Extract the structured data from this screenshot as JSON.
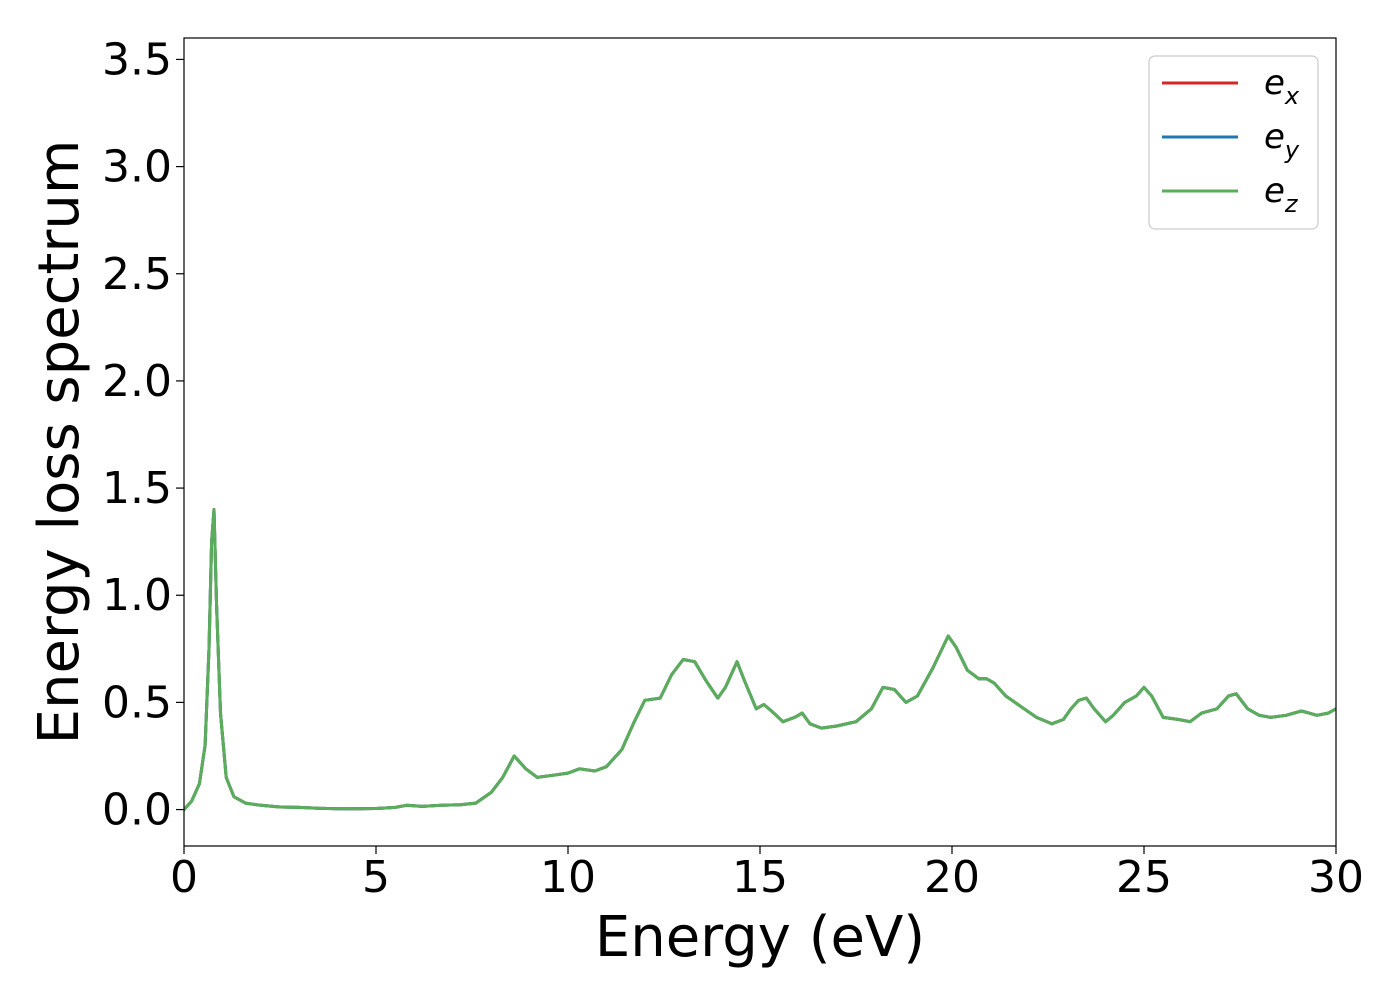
{
  "chart_data": {
    "type": "line",
    "title": "",
    "xlabel": "Energy (eV)",
    "ylabel": "Energy loss spectrum",
    "xlim": [
      0,
      30
    ],
    "ylim": [
      -0.17,
      3.6
    ],
    "xticks": [
      0,
      5,
      10,
      15,
      20,
      25,
      30
    ],
    "yticks": [
      0.0,
      0.5,
      1.0,
      1.5,
      2.0,
      2.5,
      3.0,
      3.5
    ],
    "xtick_labels": [
      "0",
      "5",
      "10",
      "15",
      "20",
      "25",
      "30"
    ],
    "ytick_labels": [
      "0.0",
      "0.5",
      "1.0",
      "1.5",
      "2.0",
      "2.5",
      "3.0",
      "3.5"
    ],
    "grid": false,
    "legend_position": "top-right",
    "x": [
      0.0,
      0.2,
      0.4,
      0.55,
      0.65,
      0.72,
      0.78,
      0.85,
      0.95,
      1.1,
      1.3,
      1.6,
      2.0,
      2.5,
      3.0,
      3.5,
      4.0,
      4.5,
      5.0,
      5.5,
      5.8,
      6.2,
      6.7,
      7.2,
      7.6,
      8.0,
      8.3,
      8.6,
      8.9,
      9.2,
      9.6,
      10.0,
      10.3,
      10.7,
      11.0,
      11.4,
      11.7,
      12.0,
      12.4,
      12.7,
      13.0,
      13.3,
      13.6,
      13.9,
      14.1,
      14.4,
      14.6,
      14.9,
      15.1,
      15.3,
      15.6,
      15.9,
      16.1,
      16.3,
      16.6,
      17.0,
      17.5,
      17.9,
      18.2,
      18.5,
      18.8,
      19.1,
      19.5,
      19.9,
      20.1,
      20.4,
      20.7,
      20.9,
      21.1,
      21.4,
      21.8,
      22.2,
      22.6,
      22.9,
      23.1,
      23.3,
      23.5,
      23.7,
      24.0,
      24.2,
      24.5,
      24.8,
      25.0,
      25.2,
      25.5,
      25.9,
      26.2,
      26.5,
      26.9,
      27.2,
      27.4,
      27.7,
      28.0,
      28.3,
      28.7,
      29.1,
      29.3,
      29.5,
      29.8,
      30.0
    ],
    "series": [
      {
        "name": "e_x",
        "color": "#d62728",
        "values": [
          0.0,
          0.04,
          0.12,
          0.3,
          0.75,
          1.25,
          1.4,
          0.95,
          0.45,
          0.15,
          0.06,
          0.03,
          0.02,
          0.012,
          0.01,
          0.006,
          0.004,
          0.004,
          0.005,
          0.01,
          0.02,
          0.015,
          0.02,
          0.022,
          0.03,
          0.08,
          0.15,
          0.25,
          0.19,
          0.15,
          0.16,
          0.17,
          0.19,
          0.18,
          0.2,
          0.28,
          0.4,
          0.51,
          0.52,
          0.63,
          0.7,
          0.69,
          0.6,
          0.52,
          0.57,
          0.69,
          0.6,
          0.47,
          0.49,
          0.46,
          0.41,
          0.43,
          0.45,
          0.4,
          0.38,
          0.39,
          0.41,
          0.47,
          0.57,
          0.56,
          0.5,
          0.53,
          0.66,
          0.81,
          0.76,
          0.65,
          0.61,
          0.61,
          0.59,
          0.53,
          0.48,
          0.43,
          0.4,
          0.42,
          0.47,
          0.51,
          0.52,
          0.47,
          0.41,
          0.44,
          0.5,
          0.53,
          0.57,
          0.53,
          0.43,
          0.42,
          0.41,
          0.45,
          0.47,
          0.53,
          0.54,
          0.47,
          0.44,
          0.43,
          0.44,
          0.46,
          0.45,
          0.44,
          0.45,
          0.47
        ]
      },
      {
        "name": "e_y",
        "color": "#1f77b4",
        "values": [
          0.0,
          0.04,
          0.12,
          0.3,
          0.75,
          1.25,
          1.4,
          0.95,
          0.45,
          0.15,
          0.06,
          0.03,
          0.02,
          0.012,
          0.01,
          0.006,
          0.004,
          0.004,
          0.005,
          0.01,
          0.02,
          0.015,
          0.02,
          0.022,
          0.03,
          0.08,
          0.15,
          0.25,
          0.19,
          0.15,
          0.16,
          0.17,
          0.19,
          0.18,
          0.2,
          0.28,
          0.4,
          0.51,
          0.52,
          0.63,
          0.7,
          0.69,
          0.6,
          0.52,
          0.57,
          0.69,
          0.6,
          0.47,
          0.49,
          0.46,
          0.41,
          0.43,
          0.45,
          0.4,
          0.38,
          0.39,
          0.41,
          0.47,
          0.57,
          0.56,
          0.5,
          0.53,
          0.66,
          0.81,
          0.76,
          0.65,
          0.61,
          0.61,
          0.59,
          0.53,
          0.48,
          0.43,
          0.4,
          0.42,
          0.47,
          0.51,
          0.52,
          0.47,
          0.41,
          0.44,
          0.5,
          0.53,
          0.57,
          0.53,
          0.43,
          0.42,
          0.41,
          0.45,
          0.47,
          0.53,
          0.54,
          0.47,
          0.44,
          0.43,
          0.44,
          0.46,
          0.45,
          0.44,
          0.45,
          0.47
        ]
      },
      {
        "name": "e_z",
        "color": "#5aad5a",
        "values": [
          0.0,
          0.04,
          0.12,
          0.3,
          0.75,
          1.25,
          1.4,
          0.95,
          0.45,
          0.15,
          0.06,
          0.03,
          0.02,
          0.012,
          0.01,
          0.006,
          0.004,
          0.004,
          0.005,
          0.01,
          0.02,
          0.015,
          0.02,
          0.022,
          0.03,
          0.08,
          0.15,
          0.25,
          0.19,
          0.15,
          0.16,
          0.17,
          0.19,
          0.18,
          0.2,
          0.28,
          0.4,
          0.51,
          0.52,
          0.63,
          0.7,
          0.69,
          0.6,
          0.52,
          0.57,
          0.69,
          0.6,
          0.47,
          0.49,
          0.46,
          0.41,
          0.43,
          0.45,
          0.4,
          0.38,
          0.39,
          0.41,
          0.47,
          0.57,
          0.56,
          0.5,
          0.53,
          0.66,
          0.81,
          0.76,
          0.65,
          0.61,
          0.61,
          0.59,
          0.53,
          0.48,
          0.43,
          0.4,
          0.42,
          0.47,
          0.51,
          0.52,
          0.47,
          0.41,
          0.44,
          0.5,
          0.53,
          0.57,
          0.53,
          0.43,
          0.42,
          0.41,
          0.45,
          0.47,
          0.53,
          0.54,
          0.47,
          0.44,
          0.43,
          0.44,
          0.46,
          0.45,
          0.44,
          0.45,
          0.47
        ]
      }
    ],
    "legend": [
      {
        "base": "e",
        "sub": "x",
        "color": "#d62728"
      },
      {
        "base": "e",
        "sub": "y",
        "color": "#1f77b4"
      },
      {
        "base": "e",
        "sub": "z",
        "color": "#5aad5a"
      }
    ]
  }
}
